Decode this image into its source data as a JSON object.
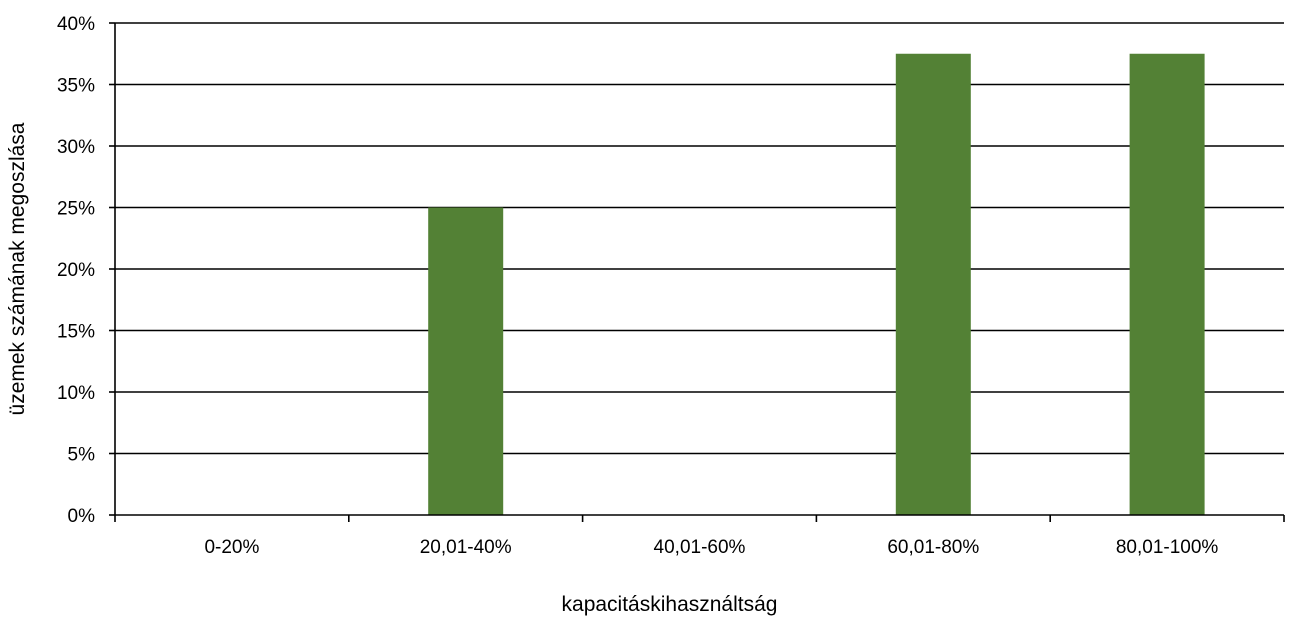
{
  "chart_data": {
    "type": "bar",
    "title": "",
    "xlabel": "kapacitáskihasználtság",
    "ylabel": "üzemek számának megoszlása",
    "categories": [
      "0-20%",
      "20,01-40%",
      "40,01-60%",
      "60,01-80%",
      "80,01-100%"
    ],
    "series": [
      {
        "values": [
          0,
          25,
          0,
          37.5,
          37.5
        ]
      }
    ],
    "ylim": [
      0,
      40
    ],
    "yticks": [
      0,
      5,
      10,
      15,
      20,
      25,
      30,
      35,
      40
    ],
    "ytick_labels": [
      "0%",
      "5%",
      "10%",
      "15%",
      "20%",
      "25%",
      "30%",
      "35%",
      "40%"
    ],
    "grid": true,
    "legend": "none",
    "bar_color": "#538135",
    "grid_color": "#000000"
  }
}
